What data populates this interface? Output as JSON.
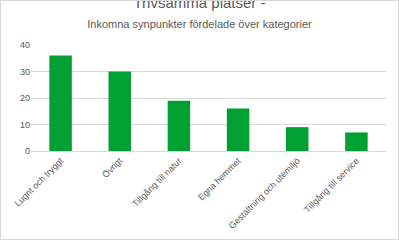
{
  "chart_data": {
    "type": "bar",
    "title": "Trivsamma platser -",
    "subtitle": "Inkomna synpunkter fördelade över kategorier",
    "categories": [
      "Lugnt och tryggt",
      "Övrigt",
      "Tillgång till natur",
      "Egna hemmet",
      "Gestaltning och utemiljö",
      "Tillgång till service"
    ],
    "values": [
      36,
      30,
      19,
      16,
      9,
      7
    ],
    "color": "#00a032",
    "ylim": [
      0,
      40
    ],
    "yticks": [
      0,
      10,
      20,
      30,
      40
    ],
    "grid": true
  }
}
